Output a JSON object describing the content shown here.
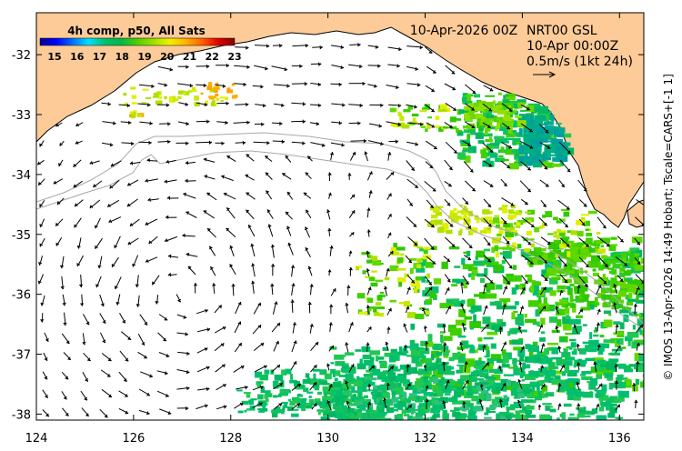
{
  "map": {
    "date_label": "10-Apr-2026 00Z",
    "product_label": "NRT00 GSL",
    "time_label": "10-Apr 00:00Z",
    "scale_label": "0.5m/s (1kt 24h)",
    "credit": "© IMOS 13-Apr-2026 14:49 Hobart; Tscale=CARS+[-1 1]",
    "x_ticks": [
      "124",
      "126",
      "128",
      "130",
      "132",
      "134",
      "136"
    ],
    "y_ticks": [
      "-32",
      "-33",
      "-34",
      "-35",
      "-36",
      "-37",
      "-38"
    ],
    "lon_range": [
      124,
      136.5
    ],
    "lat_range": [
      -38.1,
      -31.3
    ],
    "colors": {
      "land": "#fccb98",
      "ocean": "#ffffff",
      "contour": "#a8a8a8",
      "coast": "#000000"
    }
  },
  "colorbar": {
    "title": "4h comp, p50, All Sats",
    "ticks": [
      "15",
      "16",
      "17",
      "18",
      "19",
      "20",
      "21",
      "22",
      "23"
    ],
    "range": [
      15,
      23
    ],
    "stops": [
      "#00008f",
      "#0000ff",
      "#006fff",
      "#00dfff",
      "#00c070",
      "#00b84a",
      "#4fd000",
      "#9fe000",
      "#f0f000",
      "#ffb000",
      "#ff6000",
      "#e00000",
      "#800000"
    ]
  }
}
